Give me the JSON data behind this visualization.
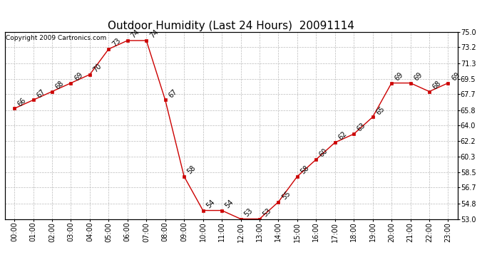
{
  "title": "Outdoor Humidity (Last 24 Hours)  20091114",
  "copyright": "Copyright 2009 Cartronics.com",
  "x_labels": [
    "00:00",
    "01:00",
    "02:00",
    "03:00",
    "04:00",
    "05:00",
    "06:00",
    "07:00",
    "08:00",
    "09:00",
    "10:00",
    "11:00",
    "12:00",
    "13:00",
    "14:00",
    "15:00",
    "16:00",
    "17:00",
    "18:00",
    "19:00",
    "20:00",
    "21:00",
    "22:00",
    "23:00"
  ],
  "x_values": [
    0,
    1,
    2,
    3,
    4,
    5,
    6,
    7,
    8,
    9,
    10,
    11,
    12,
    13,
    14,
    15,
    16,
    17,
    18,
    19,
    20,
    21,
    22,
    23
  ],
  "y_values": [
    66,
    67,
    68,
    69,
    70,
    73,
    74,
    74,
    67,
    58,
    54,
    54,
    53,
    53,
    55,
    58,
    60,
    62,
    63,
    65,
    69,
    69,
    68,
    69
  ],
  "y_labels": [
    "66",
    "67",
    "68",
    "69",
    "70",
    "73",
    "74",
    "74",
    "67",
    "58",
    "54",
    "54",
    "53",
    "53",
    "55",
    "58",
    "60",
    "62",
    "63",
    "65",
    "69",
    "69",
    "68",
    "69"
  ],
  "ylim_min": 53.0,
  "ylim_max": 75.0,
  "yticks": [
    53.0,
    54.8,
    56.7,
    58.5,
    60.3,
    62.2,
    64.0,
    65.8,
    67.7,
    69.5,
    71.3,
    73.2,
    75.0
  ],
  "ytick_labels": [
    "53.0",
    "54.8",
    "56.7",
    "58.5",
    "60.3",
    "62.2",
    "64.0",
    "65.8",
    "67.7",
    "69.5",
    "71.3",
    "73.2",
    "75.0"
  ],
  "line_color": "#cc0000",
  "marker_color": "#cc0000",
  "bg_color": "#ffffff",
  "grid_color": "#bbbbbb",
  "title_fontsize": 11,
  "label_fontsize": 7,
  "tick_fontsize": 7,
  "copyright_fontsize": 6.5
}
